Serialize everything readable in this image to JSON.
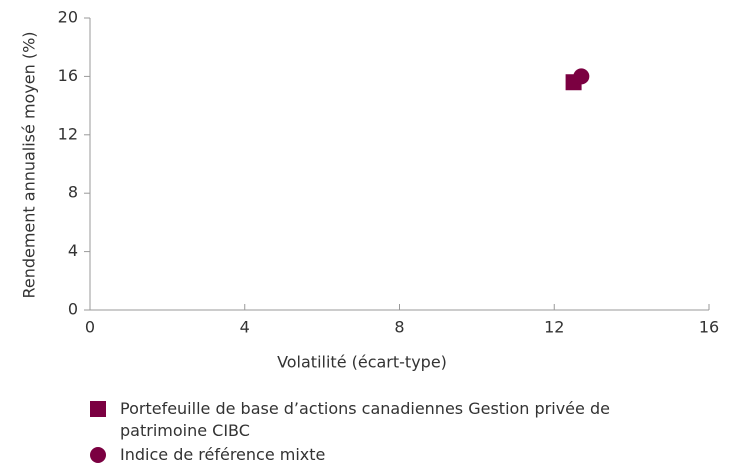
{
  "chart_data": {
    "type": "scatter",
    "xlabel": "Volatilité (écart-type)",
    "ylabel": "Rendement annualisé moyen (%)",
    "xlim": [
      0,
      16
    ],
    "xticks": [
      0,
      4,
      8,
      12,
      16
    ],
    "ylim": [
      0,
      20
    ],
    "yticks": [
      0,
      4,
      8,
      12,
      16,
      20
    ],
    "series": [
      {
        "name": "Portefeuille de base d’actions canadiennes Gestion privée de patrimoine CIBC",
        "color": "#7b0041",
        "marker": "square",
        "x": [
          12.5
        ],
        "values": [
          15.6
        ]
      },
      {
        "name": "Indice de référence mixte",
        "color": "#7b0041",
        "marker": "circle",
        "x": [
          12.7
        ],
        "values": [
          16.0
        ]
      }
    ]
  }
}
